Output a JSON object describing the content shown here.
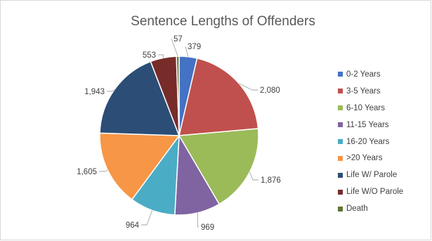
{
  "chart_data": {
    "type": "pie",
    "title": "Sentence Lengths of Offenders",
    "categories": [
      "0-2 Years",
      "3-5 Years",
      "6-10 Years",
      "11-15 Years",
      "16-20 Years",
      ">20 Years",
      "Life W/ Parole",
      "Life W/O Parole",
      "Death"
    ],
    "values": [
      379,
      2080,
      1876,
      969,
      964,
      1605,
      1943,
      553,
      57
    ],
    "data_labels": [
      "379",
      "2,080",
      "1,876",
      "969",
      "964",
      "1,605",
      "1,943",
      "553",
      "57"
    ],
    "colors": [
      "#4472c4",
      "#c0504d",
      "#9bbb59",
      "#8064a2",
      "#4bacc6",
      "#f79646",
      "#2c4d75",
      "#772c2a",
      "#5f7530"
    ],
    "legend_position": "right"
  }
}
